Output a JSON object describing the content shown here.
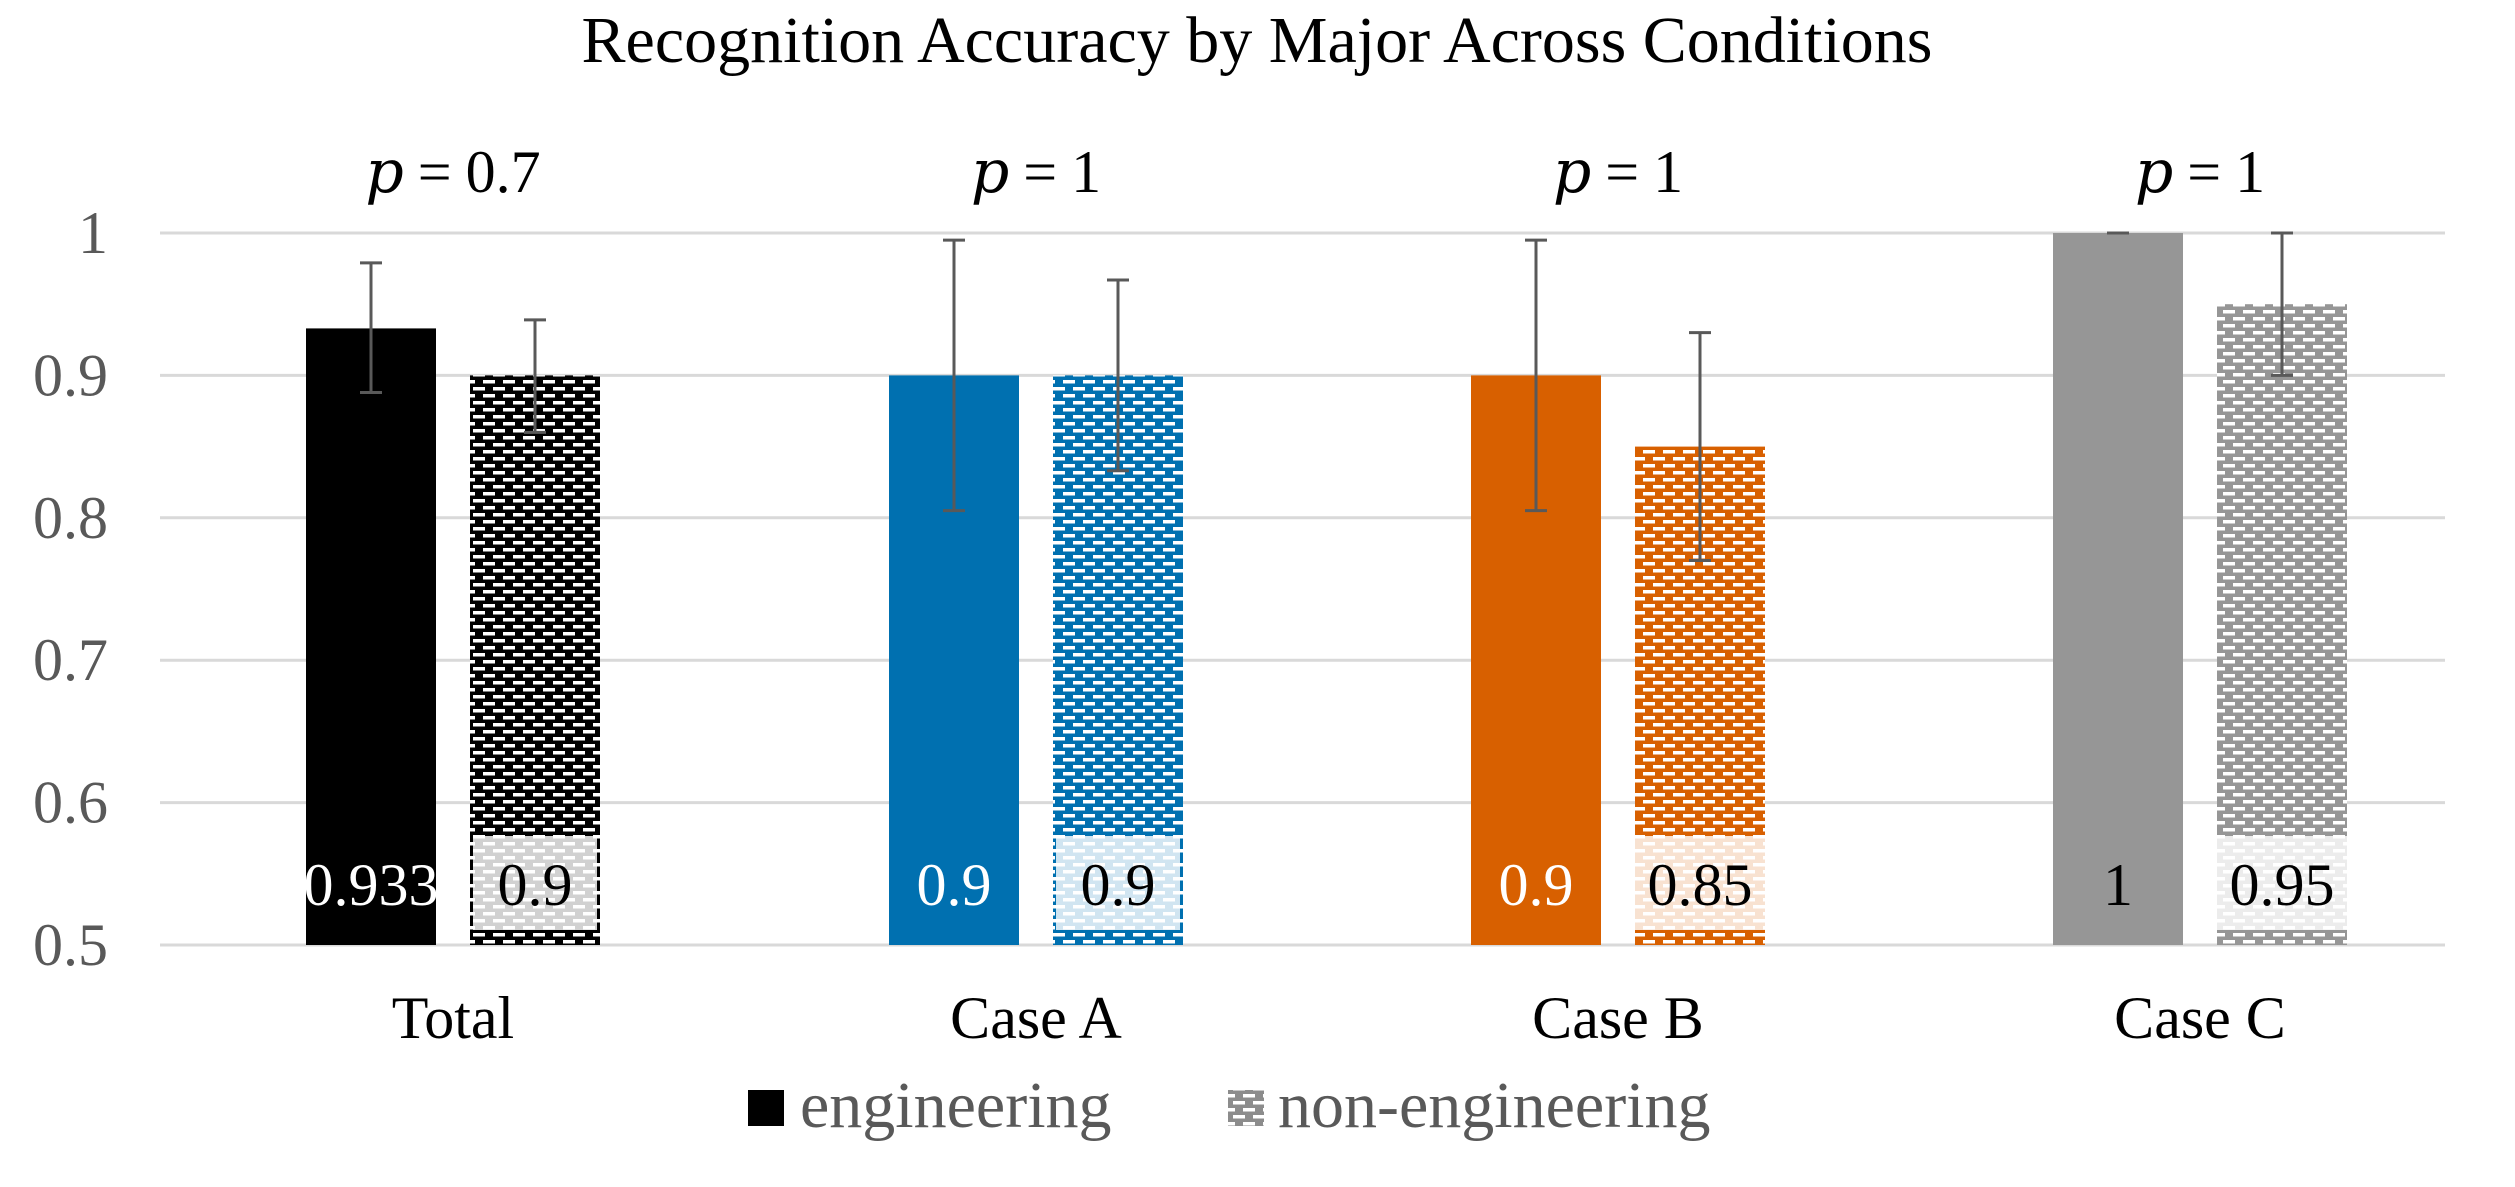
{
  "chart_data": {
    "type": "bar",
    "title": "Recognition Accuracy by Major Across Conditions",
    "xlabel": "",
    "ylabel": "",
    "ylim": [
      0.5,
      1
    ],
    "yticks": [
      "0.5",
      "0.6",
      "0.7",
      "0.8",
      "0.9",
      "1"
    ],
    "ytick_values": [
      0.5,
      0.6,
      0.7,
      0.8,
      0.9,
      1.0
    ],
    "grid": true,
    "legend_position": "bottom",
    "categories": [
      "Total",
      "Case A",
      "Case B",
      "Case C"
    ],
    "category_colors": [
      "#000000",
      "#0070B0",
      "#D86000",
      "#969696"
    ],
    "p_values": [
      "0.7",
      "1",
      "1",
      "1"
    ],
    "p_symbol": "p",
    "p_equals": "=",
    "series": [
      {
        "name": "engineering",
        "pattern": "solid",
        "values": [
          0.933,
          0.9,
          0.9,
          1.0
        ],
        "labels": [
          "0.933",
          "0.9",
          "0.9",
          "1"
        ],
        "error_low": [
          0.888,
          0.805,
          0.805,
          1.0
        ],
        "error_high": [
          0.979,
          0.995,
          0.995,
          1.0
        ]
      },
      {
        "name": "non-engineering",
        "pattern": "dashed-brick",
        "values": [
          0.9,
          0.9,
          0.85,
          0.95
        ],
        "labels": [
          "0.9",
          "0.9",
          "0.85",
          "0.95"
        ],
        "error_low": [
          0.86,
          0.833,
          0.77,
          0.9
        ],
        "error_high": [
          0.939,
          0.967,
          0.93,
          1.0
        ]
      }
    ],
    "colors": {
      "gridline": "#D9D9D9",
      "axis_text": "#595959",
      "title_text": "#000000",
      "error_bar": "#595959",
      "label_dark": "#000000",
      "label_light": "#FFFFFF"
    }
  }
}
